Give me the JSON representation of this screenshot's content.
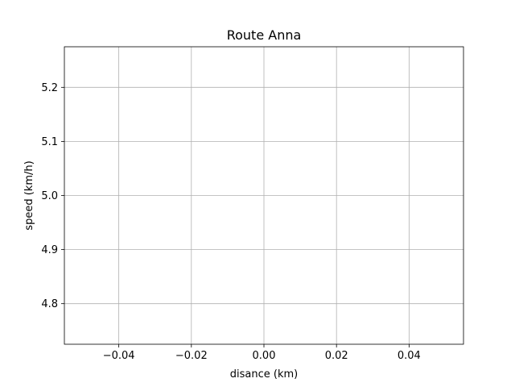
{
  "chart_data": {
    "type": "line",
    "title": "Route Anna",
    "xlabel": "disance (km)",
    "ylabel": "speed (km/h)",
    "xlim": [
      -0.055,
      0.055
    ],
    "ylim": [
      4.725,
      5.275
    ],
    "xticks": [
      -0.04,
      -0.02,
      0.0,
      0.02,
      0.04
    ],
    "xtick_labels": [
      "−0.04",
      "−0.02",
      "0.00",
      "0.02",
      "0.04"
    ],
    "yticks": [
      4.8,
      4.9,
      5.0,
      5.1,
      5.2
    ],
    "ytick_labels": [
      "4.8",
      "4.9",
      "5.0",
      "5.1",
      "5.2"
    ],
    "grid": true,
    "series": [
      {
        "x": [],
        "y": []
      }
    ],
    "colors": {
      "grid": "#b0b0b0",
      "axes": "#000000",
      "background": "#ffffff"
    }
  }
}
